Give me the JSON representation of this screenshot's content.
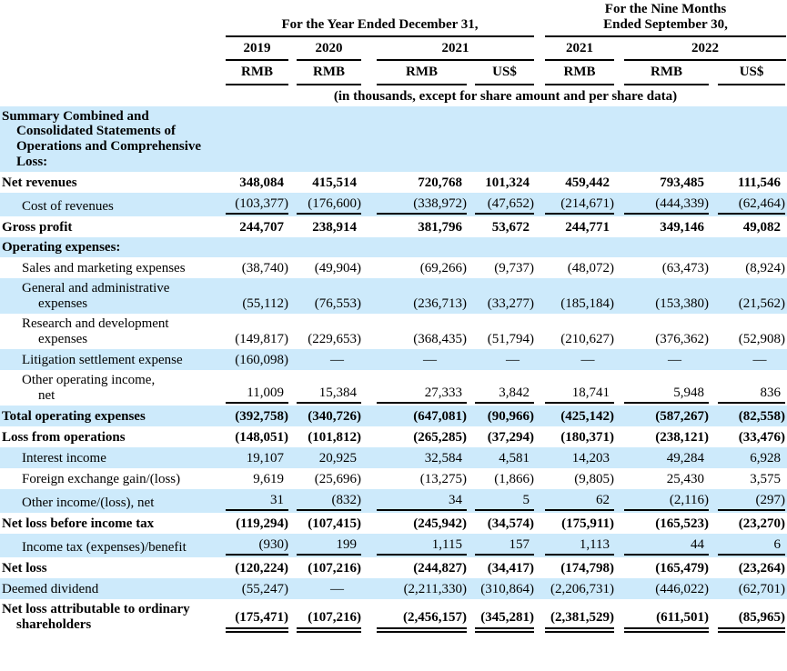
{
  "page": {
    "highlight_color": "#cdeafb",
    "text_color": "#000000",
    "background_color": "#ffffff"
  },
  "table": {
    "column_groups": [
      {
        "label": "For the Year Ended December 31,",
        "span": 4
      },
      {
        "label": "For the Nine Months\nEnded September 30,",
        "span": 3
      }
    ],
    "year_headers": [
      {
        "label": "2019",
        "span": 1
      },
      {
        "label": "2020",
        "span": 1
      },
      {
        "label": "2021",
        "span": 2
      },
      {
        "label": "2021",
        "span": 1
      },
      {
        "label": "2022",
        "span": 2
      }
    ],
    "currency_headers": [
      "RMB",
      "RMB",
      "RMB",
      "US$",
      "RMB",
      "RMB",
      "US$"
    ],
    "units_note": "(in thousands, except for share amount and per share data)",
    "rows": [
      {
        "label": "Summary Combined and\nConsolidated Statements of\nOperations and Comprehensive\nLoss:",
        "bold": true,
        "highlight": true,
        "indent": 0,
        "underline": null,
        "values": []
      },
      {
        "label": "Net revenues",
        "bold": true,
        "highlight": false,
        "indent": 0,
        "underline": null,
        "values": [
          "348,084",
          "415,514",
          "720,768",
          "101,324",
          "459,442",
          "793,485",
          "111,546"
        ]
      },
      {
        "label": "Cost of revenues",
        "bold": false,
        "highlight": true,
        "indent": 1,
        "underline": "s",
        "values": [
          "(103,377)",
          "(176,600)",
          "(338,972)",
          "(47,652)",
          "(214,671)",
          "(444,339)",
          "(62,464)"
        ]
      },
      {
        "label": "Gross profit",
        "bold": true,
        "highlight": false,
        "indent": 0,
        "underline": null,
        "values": [
          "244,707",
          "238,914",
          "381,796",
          "53,672",
          "244,771",
          "349,146",
          "49,082"
        ]
      },
      {
        "label": "Operating expenses:",
        "bold": true,
        "highlight": true,
        "indent": 0,
        "underline": null,
        "values": []
      },
      {
        "label": "Sales and marketing expenses",
        "bold": false,
        "highlight": false,
        "indent": 1,
        "underline": null,
        "values": [
          "(38,740)",
          "(49,904)",
          "(69,266)",
          "(9,737)",
          "(48,072)",
          "(63,473)",
          "(8,924)"
        ]
      },
      {
        "label": "General and administrative\nexpenses",
        "bold": false,
        "highlight": true,
        "indent": 1,
        "underline": null,
        "values": [
          "(55,112)",
          "(76,553)",
          "(236,713)",
          "(33,277)",
          "(185,184)",
          "(153,380)",
          "(21,562)"
        ]
      },
      {
        "label": "Research and development\nexpenses",
        "bold": false,
        "highlight": false,
        "indent": 1,
        "underline": null,
        "values": [
          "(149,817)",
          "(229,653)",
          "(368,435)",
          "(51,794)",
          "(210,627)",
          "(376,362)",
          "(52,908)"
        ]
      },
      {
        "label": "Litigation settlement expense",
        "bold": false,
        "highlight": true,
        "indent": 1,
        "underline": null,
        "values": [
          "(160,098)",
          "—",
          "—",
          "—",
          "—",
          "—",
          "—"
        ]
      },
      {
        "label": "Other operating income,\nnet",
        "bold": false,
        "highlight": false,
        "indent": 1,
        "underline": "s",
        "values": [
          "11,009",
          "15,384",
          "27,333",
          "3,842",
          "18,741",
          "5,948",
          "836"
        ]
      },
      {
        "label": "Total operating expenses",
        "bold": true,
        "highlight": true,
        "indent": 0,
        "underline": null,
        "values": [
          "(392,758)",
          "(340,726)",
          "(647,081)",
          "(90,966)",
          "(425,142)",
          "(587,267)",
          "(82,558)"
        ]
      },
      {
        "label": "Loss from operations",
        "bold": true,
        "highlight": false,
        "indent": 0,
        "underline": null,
        "values": [
          "(148,051)",
          "(101,812)",
          "(265,285)",
          "(37,294)",
          "(180,371)",
          "(238,121)",
          "(33,476)"
        ]
      },
      {
        "label": "Interest income",
        "bold": false,
        "highlight": true,
        "indent": 1,
        "underline": null,
        "values": [
          "19,107",
          "20,925",
          "32,584",
          "4,581",
          "14,203",
          "49,284",
          "6,928"
        ]
      },
      {
        "label": "Foreign exchange gain/(loss)",
        "bold": false,
        "highlight": false,
        "indent": 1,
        "underline": null,
        "values": [
          "9,619",
          "(25,696)",
          "(13,275)",
          "(1,866)",
          "(9,805)",
          "25,430",
          "3,575"
        ]
      },
      {
        "label": "Other income/(loss), net",
        "bold": false,
        "highlight": true,
        "indent": 1,
        "underline": "s",
        "values": [
          "31",
          "(832)",
          "34",
          "5",
          "62",
          "(2,116)",
          "(297)"
        ]
      },
      {
        "label": "Net loss before income tax",
        "bold": true,
        "highlight": false,
        "indent": 0,
        "underline": null,
        "values": [
          "(119,294)",
          "(107,415)",
          "(245,942)",
          "(34,574)",
          "(175,911)",
          "(165,523)",
          "(23,270)"
        ]
      },
      {
        "label": "Income tax (expenses)/benefit",
        "bold": false,
        "highlight": true,
        "indent": 1,
        "underline": "s",
        "values": [
          "(930)",
          "199",
          "1,115",
          "157",
          "1,113",
          "44",
          "6"
        ]
      },
      {
        "label": "Net loss",
        "bold": true,
        "highlight": false,
        "indent": 0,
        "underline": null,
        "values": [
          "(120,224)",
          "(107,216)",
          "(244,827)",
          "(34,417)",
          "(174,798)",
          "(165,479)",
          "(23,264)"
        ]
      },
      {
        "label": "Deemed dividend",
        "bold": false,
        "highlight": true,
        "indent": 0,
        "underline": null,
        "values": [
          "(55,247)",
          "—",
          "(2,211,330)",
          "(310,864)",
          "(2,206,731)",
          "(446,022)",
          "(62,701)"
        ]
      },
      {
        "label": "Net loss attributable to ordinary\nshareholders",
        "bold": true,
        "highlight": false,
        "indent": 0,
        "underline": "d",
        "values": [
          "(175,471)",
          "(107,216)",
          "(2,456,157)",
          "(345,281)",
          "(2,381,529)",
          "(611,501)",
          "(85,965)"
        ]
      }
    ]
  }
}
